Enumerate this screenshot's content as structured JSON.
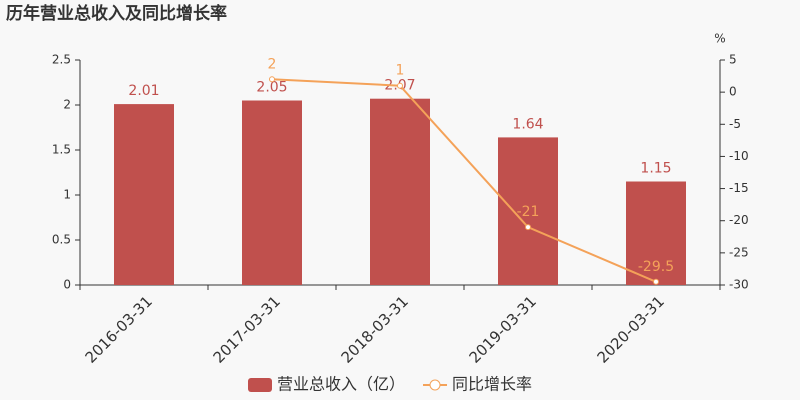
{
  "chart_data": {
    "type": "bar",
    "title": "历年营业总收入及同比增长率",
    "y2_label": "%",
    "categories": [
      "2016-03-31",
      "2017-03-31",
      "2018-03-31",
      "2019-03-31",
      "2020-03-31"
    ],
    "series": [
      {
        "name": "营业总收入（亿）",
        "type": "bar",
        "color": "#c0504d",
        "values": [
          2.01,
          2.05,
          2.07,
          1.64,
          1.15
        ]
      },
      {
        "name": "同比增长率",
        "type": "line",
        "color": "#f4a259",
        "axis": "y2",
        "values": [
          null,
          2,
          1,
          -21,
          -29.5
        ]
      }
    ],
    "ylim": [
      0,
      2.5
    ],
    "yticks": [
      0,
      0.5,
      1,
      1.5,
      2,
      2.5
    ],
    "y2lim": [
      -30,
      5
    ],
    "y2ticks": [
      5,
      0,
      -5,
      -10,
      -15,
      -20,
      -25,
      -30
    ]
  }
}
